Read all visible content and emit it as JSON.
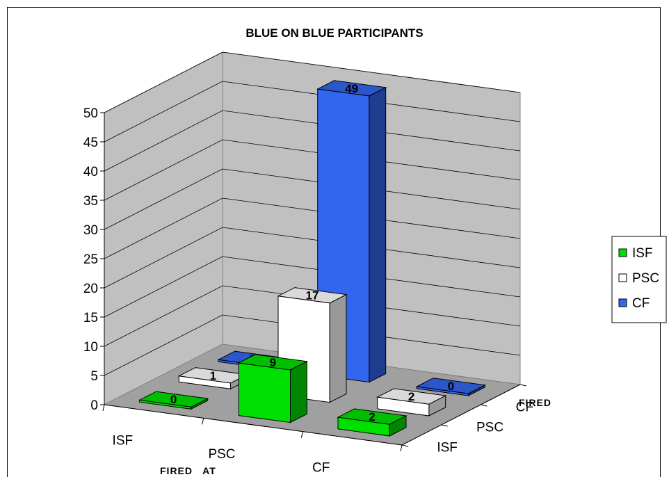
{
  "chart_data": {
    "type": "bar3d",
    "title": "BLUE ON BLUE PARTICIPANTS",
    "xlabel": "FIRED   AT",
    "zlabel": "FIRED",
    "x_categories": [
      "ISF",
      "PSC",
      "CF"
    ],
    "z_categories": [
      "ISF",
      "PSC",
      "CF"
    ],
    "ylim": [
      0,
      50
    ],
    "yticks": [
      "0",
      "5",
      "10",
      "15",
      "20",
      "25",
      "30",
      "35",
      "40",
      "45",
      "50"
    ],
    "series": [
      {
        "name": "ISF",
        "color": "#00e000",
        "values": [
          0,
          9,
          2
        ]
      },
      {
        "name": "PSC",
        "color": "#ffffff",
        "values": [
          1,
          17,
          2
        ]
      },
      {
        "name": "CF",
        "color": "#3366ee",
        "values": [
          0,
          49,
          0
        ]
      }
    ],
    "legend_position": "right",
    "gridlines": true,
    "floor_color": "#a0a0a0",
    "wall_color": "#c0c0c0"
  }
}
